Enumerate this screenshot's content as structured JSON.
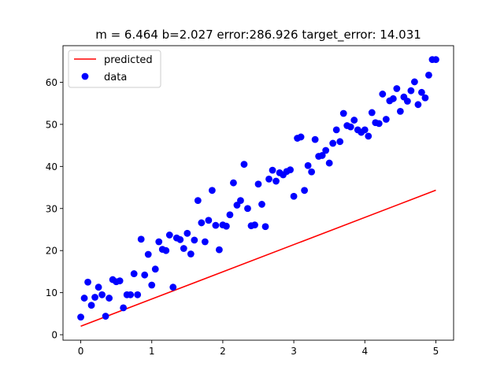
{
  "chart_data": {
    "type": "scatter",
    "title": "m = 6.464  b=2.027  error:286.926 target_error: 14.031",
    "xlabel": "",
    "ylabel": "",
    "xlim": [
      -0.25,
      5.25
    ],
    "ylim": [
      -1.3,
      68.7
    ],
    "xticks": [
      0,
      1,
      2,
      3,
      4,
      5
    ],
    "yticks": [
      0,
      10,
      20,
      30,
      40,
      50,
      60
    ],
    "grid": false,
    "legend_position": "top-left",
    "series": [
      {
        "name": "predicted",
        "kind": "line",
        "color": "#ff0000",
        "x": [
          0,
          5
        ],
        "y": [
          2.027,
          34.347
        ]
      },
      {
        "name": "data",
        "kind": "scatter",
        "color": "#0000ff",
        "x": [
          0.0,
          0.05,
          0.1,
          0.15,
          0.2,
          0.25,
          0.3,
          0.35,
          0.4,
          0.45,
          0.5,
          0.55,
          0.6,
          0.65,
          0.7,
          0.75,
          0.8,
          0.85,
          0.9,
          0.95,
          1.0,
          1.05,
          1.1,
          1.15,
          1.2,
          1.25,
          1.3,
          1.35,
          1.4,
          1.45,
          1.5,
          1.55,
          1.6,
          1.65,
          1.7,
          1.75,
          1.8,
          1.85,
          1.9,
          1.95,
          2.0,
          2.05,
          2.1,
          2.15,
          2.2,
          2.25,
          2.3,
          2.35,
          2.4,
          2.45,
          2.5,
          2.55,
          2.6,
          2.65,
          2.7,
          2.75,
          2.8,
          2.85,
          2.9,
          2.95,
          3.0,
          3.05,
          3.1,
          3.15,
          3.2,
          3.25,
          3.3,
          3.35,
          3.4,
          3.45,
          3.5,
          3.55,
          3.6,
          3.65,
          3.7,
          3.75,
          3.8,
          3.85,
          3.9,
          3.95,
          4.0,
          4.05,
          4.1,
          4.15,
          4.2,
          4.25,
          4.3,
          4.35,
          4.4,
          4.45,
          4.5,
          4.55,
          4.6,
          4.65,
          4.7,
          4.75,
          4.8,
          4.85,
          4.9,
          4.95,
          5.0
        ],
        "y": [
          4.2,
          8.7,
          12.5,
          7.0,
          8.9,
          11.3,
          9.5,
          4.4,
          8.7,
          13.1,
          12.6,
          12.8,
          6.4,
          9.5,
          9.5,
          14.5,
          9.5,
          22.7,
          14.2,
          19.1,
          11.8,
          15.6,
          22.1,
          20.3,
          20.0,
          23.7,
          11.3,
          23.0,
          22.6,
          20.5,
          24.1,
          19.2,
          22.5,
          31.9,
          26.6,
          22.1,
          27.2,
          34.3,
          26.0,
          20.2,
          26.1,
          25.8,
          28.5,
          36.1,
          30.8,
          31.9,
          40.5,
          30.0,
          25.9,
          26.1,
          35.8,
          31.0,
          25.7,
          37.0,
          39.1,
          36.5,
          38.5,
          38.0,
          38.8,
          39.2,
          32.9,
          46.7,
          47.0,
          34.3,
          40.2,
          38.7,
          46.4,
          42.4,
          42.6,
          43.8,
          40.8,
          45.5,
          48.7,
          45.9,
          52.6,
          49.7,
          49.4,
          51.0,
          48.7,
          48.1,
          48.7,
          47.2,
          52.8,
          50.4,
          50.2,
          57.2,
          51.2,
          55.6,
          56.1,
          58.5,
          53.1,
          56.5,
          55.5,
          58.0,
          60.1,
          54.7,
          57.6,
          56.3,
          61.7,
          65.4,
          65.4
        ]
      }
    ]
  }
}
